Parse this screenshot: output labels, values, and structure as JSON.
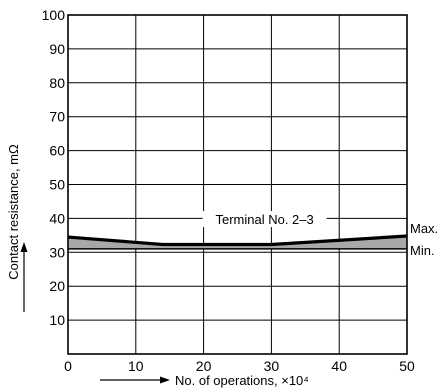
{
  "chart_data": {
    "type": "line",
    "title": "",
    "xlabel": "No. of operations, ×10⁴",
    "ylabel": "Contact resistance, mΩ",
    "xlim": [
      0,
      50
    ],
    "ylim": [
      0,
      100
    ],
    "x_ticks": [
      0,
      10,
      20,
      30,
      40,
      50
    ],
    "y_ticks": [
      10,
      20,
      30,
      40,
      50,
      60,
      70,
      80,
      90,
      100
    ],
    "grid": true,
    "legend": "none",
    "series": [
      {
        "name": "Max.",
        "x": [
          0,
          14,
          30,
          50
        ],
        "y": [
          34.5,
          32.3,
          32.3,
          34.8
        ]
      },
      {
        "name": "Min.",
        "x": [
          0,
          50
        ],
        "y": [
          31,
          31
        ]
      }
    ],
    "annotations": [
      {
        "text": "Terminal No. 2–3",
        "x": 29,
        "y": 39.5
      }
    ],
    "colors": {
      "line": "#000000",
      "band": "#a8a8a8",
      "grid": "#000000"
    }
  }
}
